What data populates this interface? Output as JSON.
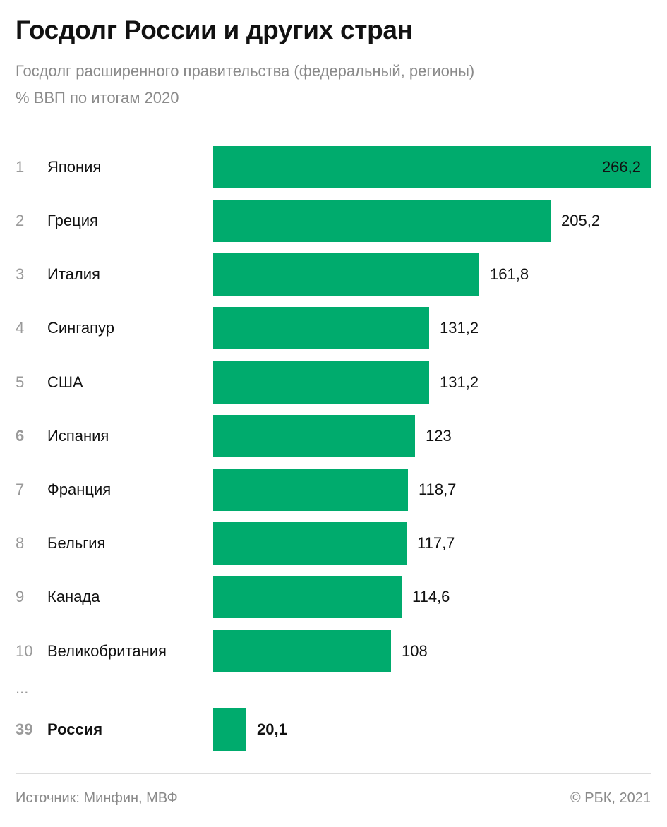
{
  "header": {
    "title": "Госдолг России и других стран",
    "subtitle_line1": "Госдолг расширенного правительства (федеральный, регионы)",
    "subtitle_line2": "% ВВП по итогам 2020"
  },
  "chart_data": {
    "type": "bar",
    "orientation": "horizontal",
    "title": "Госдолг России и других стран",
    "subtitle": "Госдолг расширенного правительства (федеральный, регионы) % ВВП по итогам 2020",
    "rows": [
      {
        "rank": "1",
        "category": "Япония",
        "value": 266.2,
        "label": "266,2",
        "highlight": false,
        "rank_bold": false
      },
      {
        "rank": "2",
        "category": "Греция",
        "value": 205.2,
        "label": "205,2",
        "highlight": false,
        "rank_bold": false
      },
      {
        "rank": "3",
        "category": "Италия",
        "value": 161.8,
        "label": "161,8",
        "highlight": false,
        "rank_bold": false
      },
      {
        "rank": "4",
        "category": "Сингапур",
        "value": 131.2,
        "label": "131,2",
        "highlight": false,
        "rank_bold": false
      },
      {
        "rank": "5",
        "category": "США",
        "value": 131.2,
        "label": "131,2",
        "highlight": false,
        "rank_bold": false
      },
      {
        "rank": "6",
        "category": "Испания",
        "value": 123,
        "label": "123",
        "highlight": false,
        "rank_bold": true
      },
      {
        "rank": "7",
        "category": "Франция",
        "value": 118.7,
        "label": "118,7",
        "highlight": false,
        "rank_bold": false
      },
      {
        "rank": "8",
        "category": "Бельгия",
        "value": 117.7,
        "label": "117,7",
        "highlight": false,
        "rank_bold": false
      },
      {
        "rank": "9",
        "category": "Канада",
        "value": 114.6,
        "label": "114,6",
        "highlight": false,
        "rank_bold": false
      },
      {
        "rank": "10",
        "category": "Великобритания",
        "value": 108,
        "label": "108",
        "highlight": false,
        "rank_bold": false
      },
      {
        "rank": "39",
        "category": "Россия",
        "value": 20.1,
        "label": "20,1",
        "highlight": true,
        "rank_bold": true
      }
    ],
    "gap_marker": "...",
    "xlim": [
      0,
      266.2
    ],
    "bar_color": "#00ab6d",
    "grid": false,
    "legend": "none"
  },
  "footer": {
    "source": "Источник: Минфин, МВФ",
    "copyright": "© РБК, 2021"
  }
}
